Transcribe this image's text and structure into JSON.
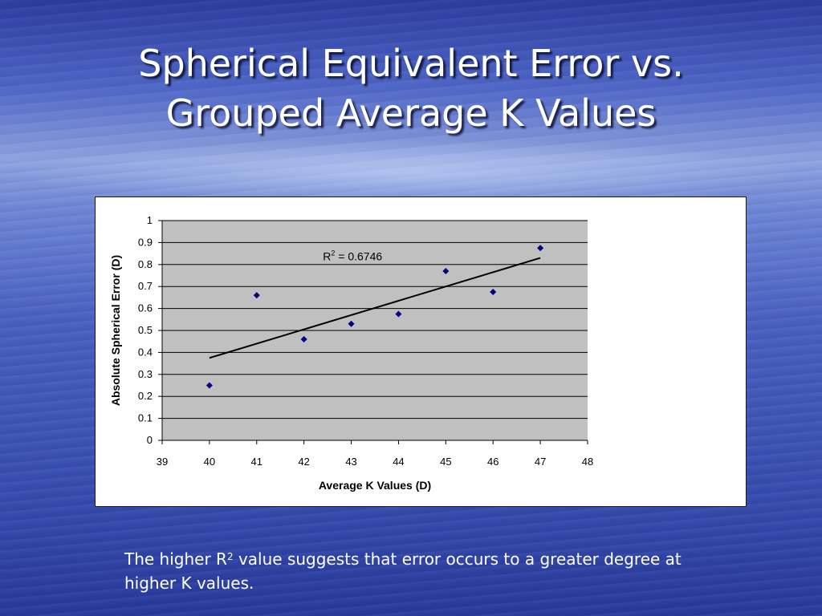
{
  "slide": {
    "title_line1": "Spherical Equivalent Error vs.",
    "title_line2": "Grouped Average K Values",
    "footnote": {
      "before": "The higher R",
      "sup": "2",
      "after": " value suggests that error occurs to a greater degree at higher K values."
    }
  },
  "colors": {
    "plot_background": "#c0c0c0",
    "gridline": "#000000",
    "marker": "#000080",
    "trendline": "#000000"
  },
  "chart_data": {
    "type": "scatter",
    "xlabel": "Average K Values (D)",
    "ylabel": "Absolute Spherical Error (D)",
    "xlim": [
      39,
      48
    ],
    "ylim": [
      0,
      1
    ],
    "x_ticks": [
      "39",
      "40",
      "41",
      "42",
      "43",
      "44",
      "45",
      "46",
      "47",
      "48"
    ],
    "y_ticks": [
      "0",
      "0.1",
      "0.2",
      "0.3",
      "0.4",
      "0.5",
      "0.6",
      "0.7",
      "0.8",
      "0.9",
      "1"
    ],
    "grid": true,
    "legend": "none",
    "series": [
      {
        "marker": "diamond",
        "points": [
          {
            "x": 40,
            "y": 0.25
          },
          {
            "x": 41,
            "y": 0.66
          },
          {
            "x": 42,
            "y": 0.46
          },
          {
            "x": 43,
            "y": 0.53
          },
          {
            "x": 44,
            "y": 0.575
          },
          {
            "x": 45,
            "y": 0.77
          },
          {
            "x": 46,
            "y": 0.675
          },
          {
            "x": 47,
            "y": 0.875
          }
        ]
      }
    ],
    "trendline": {
      "type": "linear",
      "from": {
        "x": 40,
        "y": 0.375
      },
      "to": {
        "x": 47,
        "y": 0.83
      }
    },
    "annotation": {
      "prefix": "R",
      "sup": "2",
      "suffix": " = 0.6746",
      "at": {
        "x": 42.4,
        "y": 0.82
      }
    }
  }
}
